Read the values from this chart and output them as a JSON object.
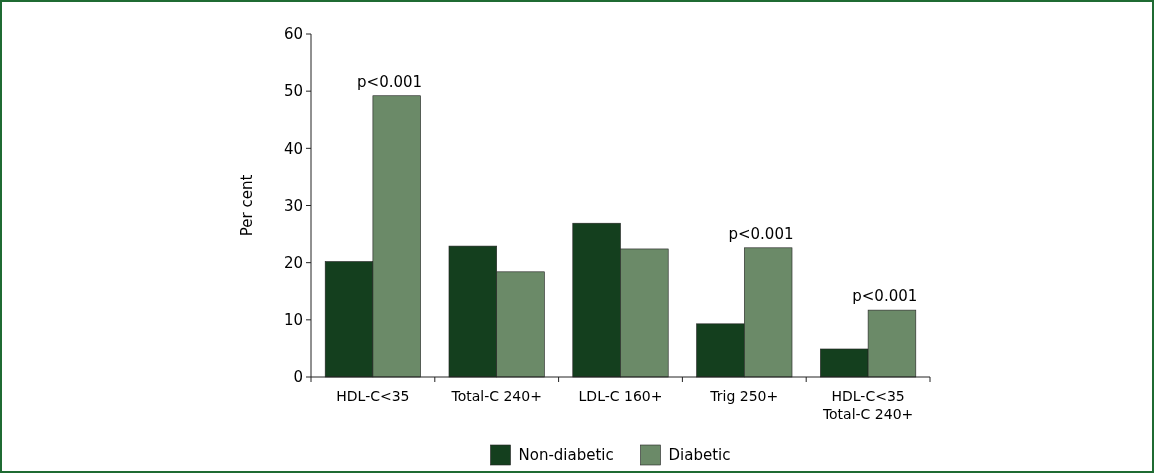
{
  "chart_data": {
    "type": "bar",
    "ylabel": "Per cent",
    "categories": [
      "HDL-C<35",
      "Total-C 240+",
      "LDL-C 160+",
      "Trig 250+",
      "HDL-C<35\nTotal-C 240+"
    ],
    "series": [
      {
        "name": "Non-diabetic",
        "color": "#143f1e",
        "values": [
          20.2,
          22.9,
          26.9,
          9.3,
          4.9
        ]
      },
      {
        "name": "Diabetic",
        "color": "#6b8a68",
        "values": [
          49.2,
          18.4,
          22.4,
          22.6,
          11.7
        ]
      }
    ],
    "ylim": [
      0,
      60
    ],
    "yticks": [
      0,
      10,
      20,
      30,
      40,
      50,
      60
    ],
    "grid": false,
    "legend": "bottom",
    "annotations": [
      {
        "text": "p<0.001",
        "x": "HDL-C<35",
        "y": 49.2
      },
      {
        "text": "p<0.001",
        "x": "Trig 250+",
        "y": 22.6
      },
      {
        "text": "p<0.001",
        "x": "HDL-C<35\nTotal-C 240+",
        "y": 11.7
      }
    ]
  }
}
